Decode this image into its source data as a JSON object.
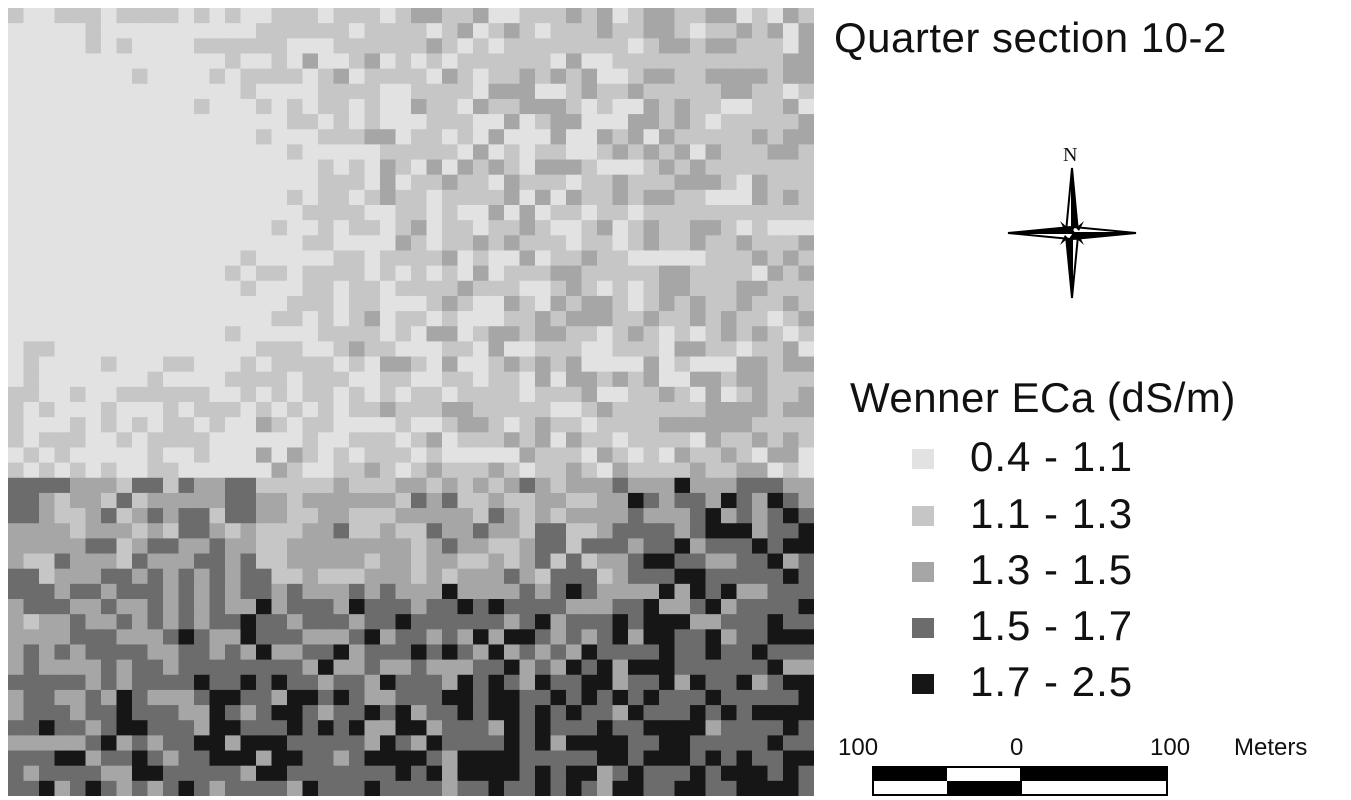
{
  "title": "Quarter section 10-2",
  "north_arrow": {
    "label": "N",
    "icon": "compass-rose-icon"
  },
  "legend": {
    "title": "Wenner ECa (dS/m)",
    "classes": [
      {
        "label": "0.4 - 1.1",
        "color": "#e2e2e2"
      },
      {
        "label": "1.1 - 1.3",
        "color": "#c6c6c6"
      },
      {
        "label": "1.3 - 1.5",
        "color": "#a6a6a6"
      },
      {
        "label": "1.5 - 1.7",
        "color": "#6c6c6c"
      },
      {
        "label": "1.7 - 2.5",
        "color": "#161616"
      }
    ]
  },
  "scale_bar": {
    "left_value": "100",
    "center_value": "0",
    "right_value": "100",
    "unit": "Meters"
  }
}
